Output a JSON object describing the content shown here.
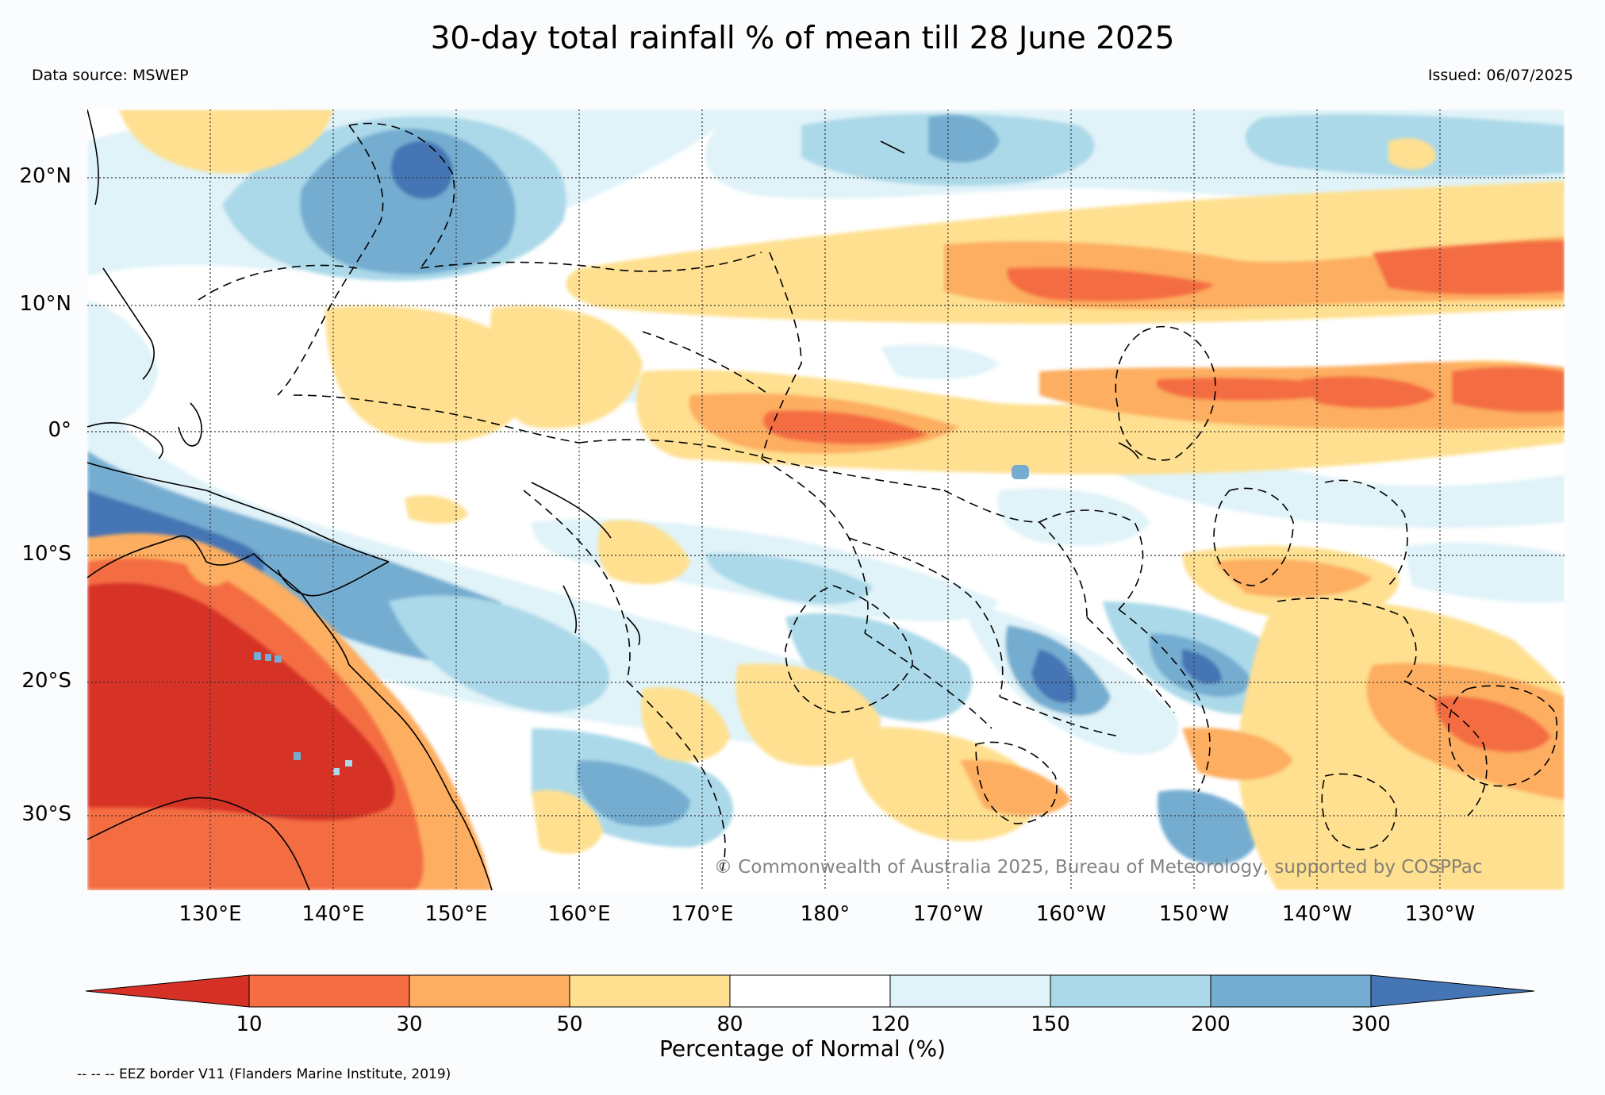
{
  "title": "30-day total rainfall % of mean till 28 June 2025",
  "data_source": "Data source: MSWEP",
  "issued": "Issued: 06/07/2025",
  "latitude_labels": [
    "20°N",
    "10°N",
    "0°",
    "10°S",
    "20°S",
    "30°S"
  ],
  "longitude_labels": [
    "130°E",
    "140°E",
    "150°E",
    "160°E",
    "170°E",
    "180°",
    "170°W",
    "160°W",
    "150°W",
    "140°W",
    "130°W"
  ],
  "copyright": "© Commonwealth of Australia 2025, Bureau of Meteorology, supported by COSPPac",
  "colorbar": {
    "label": "Percentage of Normal (%)",
    "ticks": [
      "10",
      "30",
      "50",
      "80",
      "120",
      "150",
      "200",
      "300"
    ],
    "colors": [
      "#d73027",
      "#f46d43",
      "#fdae61",
      "#fee090",
      "#ffffff",
      "#e0f3f8",
      "#abd9e9",
      "#74add1",
      "#4575b4"
    ]
  },
  "eez_note": "-- -- -- EEZ border V11 (Flanders Marine Institute, 2019)"
}
